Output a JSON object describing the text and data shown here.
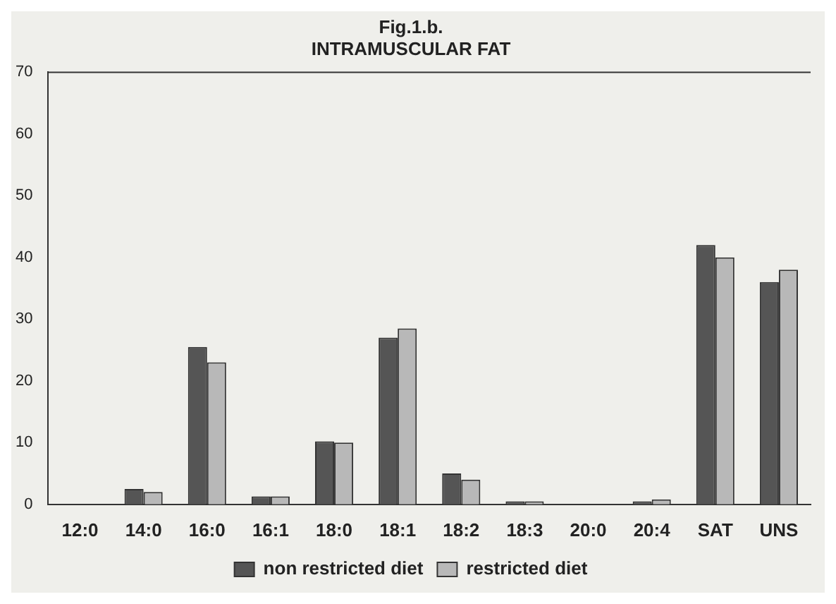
{
  "chart_data": {
    "type": "bar",
    "title": "Fig.1.b.",
    "subtitle": "INTRAMUSCULAR FAT",
    "categories": [
      "12:0",
      "14:0",
      "16:0",
      "16:1",
      "18:0",
      "18:1",
      "18:2",
      "18:3",
      "20:0",
      "20:4",
      "SAT",
      "UNS"
    ],
    "series": [
      {
        "name": "non restricted diet",
        "color": "#555555",
        "values": [
          0,
          2.5,
          25.5,
          1.3,
          10.2,
          27,
          5,
          0.5,
          0,
          0.5,
          42,
          36
        ]
      },
      {
        "name": "restricted diet",
        "color": "#b8b8b8",
        "values": [
          0,
          2,
          23,
          1.3,
          10,
          28.5,
          4,
          0.5,
          0,
          0.8,
          40,
          38
        ]
      }
    ],
    "ylim": [
      0,
      70
    ],
    "yticks": [
      0,
      10,
      20,
      30,
      40,
      50,
      60,
      70
    ],
    "grid": false,
    "legend": "bottom"
  }
}
